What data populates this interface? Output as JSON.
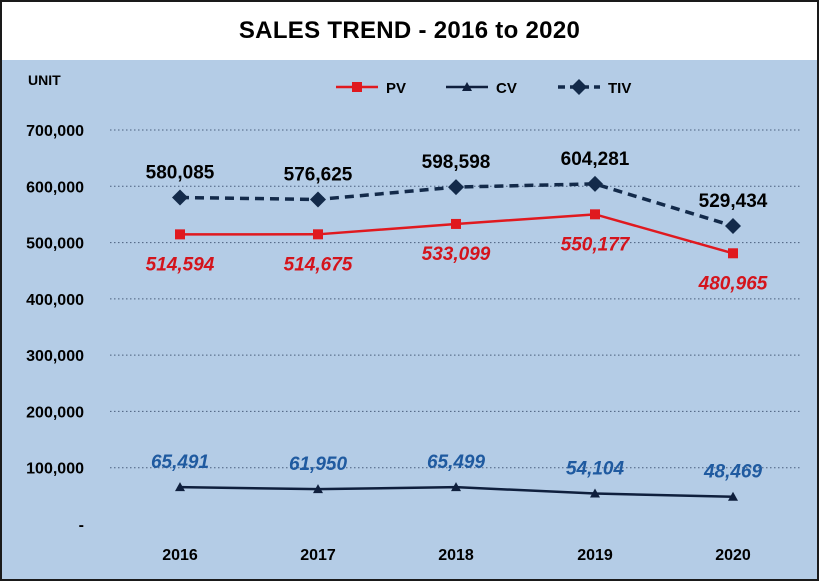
{
  "chart_data": {
    "type": "line",
    "title": "SALES TREND - 2016 to 2020",
    "ylabel": "UNIT",
    "xlabel": "",
    "categories": [
      "2016",
      "2017",
      "2018",
      "2019",
      "2020"
    ],
    "ylim": [
      0,
      700000
    ],
    "y_ticks": [
      {
        "value": 0,
        "label": "-"
      },
      {
        "value": 100000,
        "label": "100,000"
      },
      {
        "value": 200000,
        "label": "200,000"
      },
      {
        "value": 300000,
        "label": "300,000"
      },
      {
        "value": 400000,
        "label": "400,000"
      },
      {
        "value": 500000,
        "label": "500,000"
      },
      {
        "value": 600000,
        "label": "600,000"
      },
      {
        "value": 700000,
        "label": "700,000"
      }
    ],
    "grid": "horizontal dotted",
    "legend_position": "top",
    "series": [
      {
        "name": "PV",
        "marker": "square",
        "line": "solid",
        "color": "#e0191f",
        "label_color": "#d4141c",
        "label_position": "below",
        "values": [
          514594,
          514675,
          533099,
          550177,
          480965
        ],
        "labels": [
          "514,594",
          "514,675",
          "533,099",
          "550,177",
          "480,965"
        ]
      },
      {
        "name": "CV",
        "marker": "triangle",
        "line": "solid",
        "color": "#0f1f3d",
        "label_color": "#1f5aa0",
        "label_position": "above",
        "values": [
          65491,
          61950,
          65499,
          54104,
          48469
        ],
        "labels": [
          "65,491",
          "61,950",
          "65,499",
          "54,104",
          "48,469"
        ]
      },
      {
        "name": "TIV",
        "marker": "diamond",
        "line": "dashed",
        "color": "#132a4a",
        "label_color": "#000000",
        "label_position": "above",
        "values": [
          580085,
          576625,
          598598,
          604281,
          529434
        ],
        "labels": [
          "580,085",
          "576,625",
          "598,598",
          "604,281",
          "529,434"
        ]
      }
    ]
  }
}
